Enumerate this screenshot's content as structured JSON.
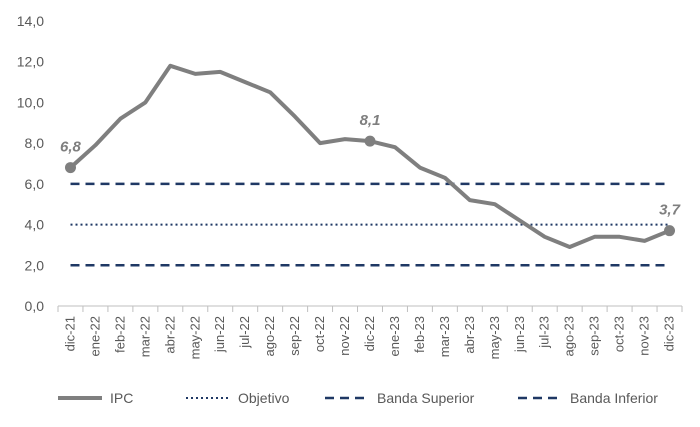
{
  "chart_data": {
    "type": "line",
    "title": "",
    "xlabel": "",
    "ylabel": "",
    "ylim": [
      0,
      14
    ],
    "yticks": [
      "0,0",
      "2,0",
      "4,0",
      "6,0",
      "8,0",
      "10,0",
      "12,0",
      "14,0"
    ],
    "categories": [
      "dic-21",
      "ene-22",
      "feb-22",
      "mar-22",
      "abr-22",
      "may-22",
      "jun-22",
      "jul-22",
      "ago-22",
      "sep-22",
      "oct-22",
      "nov-22",
      "dic-22",
      "ene-23",
      "feb-23",
      "mar-23",
      "abr-23",
      "may-23",
      "jun-23",
      "jul-23",
      "ago-23",
      "sep-23",
      "oct-23",
      "nov-23",
      "dic-23"
    ],
    "series": [
      {
        "name": "IPC",
        "color": "#7f7f7f",
        "style": "solid",
        "values": [
          6.8,
          7.9,
          9.2,
          10.0,
          11.8,
          11.4,
          11.5,
          11.0,
          10.5,
          9.3,
          8.0,
          8.2,
          8.1,
          7.8,
          6.8,
          6.3,
          5.2,
          5.0,
          4.2,
          3.4,
          2.9,
          3.4,
          3.4,
          3.2,
          3.7
        ]
      },
      {
        "name": "Objetivo",
        "color": "#1f3864",
        "style": "dotted",
        "values": [
          4,
          4,
          4,
          4,
          4,
          4,
          4,
          4,
          4,
          4,
          4,
          4,
          4,
          4,
          4,
          4,
          4,
          4,
          4,
          4,
          4,
          4,
          4,
          4,
          4
        ]
      },
      {
        "name": "Banda Superior",
        "color": "#1f3864",
        "style": "dashed",
        "values": [
          6,
          6,
          6,
          6,
          6,
          6,
          6,
          6,
          6,
          6,
          6,
          6,
          6,
          6,
          6,
          6,
          6,
          6,
          6,
          6,
          6,
          6,
          6,
          6,
          6
        ]
      },
      {
        "name": "Banda Inferior",
        "color": "#1f3864",
        "style": "dashed",
        "values": [
          2,
          2,
          2,
          2,
          2,
          2,
          2,
          2,
          2,
          2,
          2,
          2,
          2,
          2,
          2,
          2,
          2,
          2,
          2,
          2,
          2,
          2,
          2,
          2,
          2
        ]
      }
    ],
    "data_labels": [
      {
        "index": 0,
        "text": "6,8"
      },
      {
        "index": 12,
        "text": "8,1"
      },
      {
        "index": 24,
        "text": "3,7"
      }
    ],
    "legend_position": "bottom",
    "grid": false
  }
}
